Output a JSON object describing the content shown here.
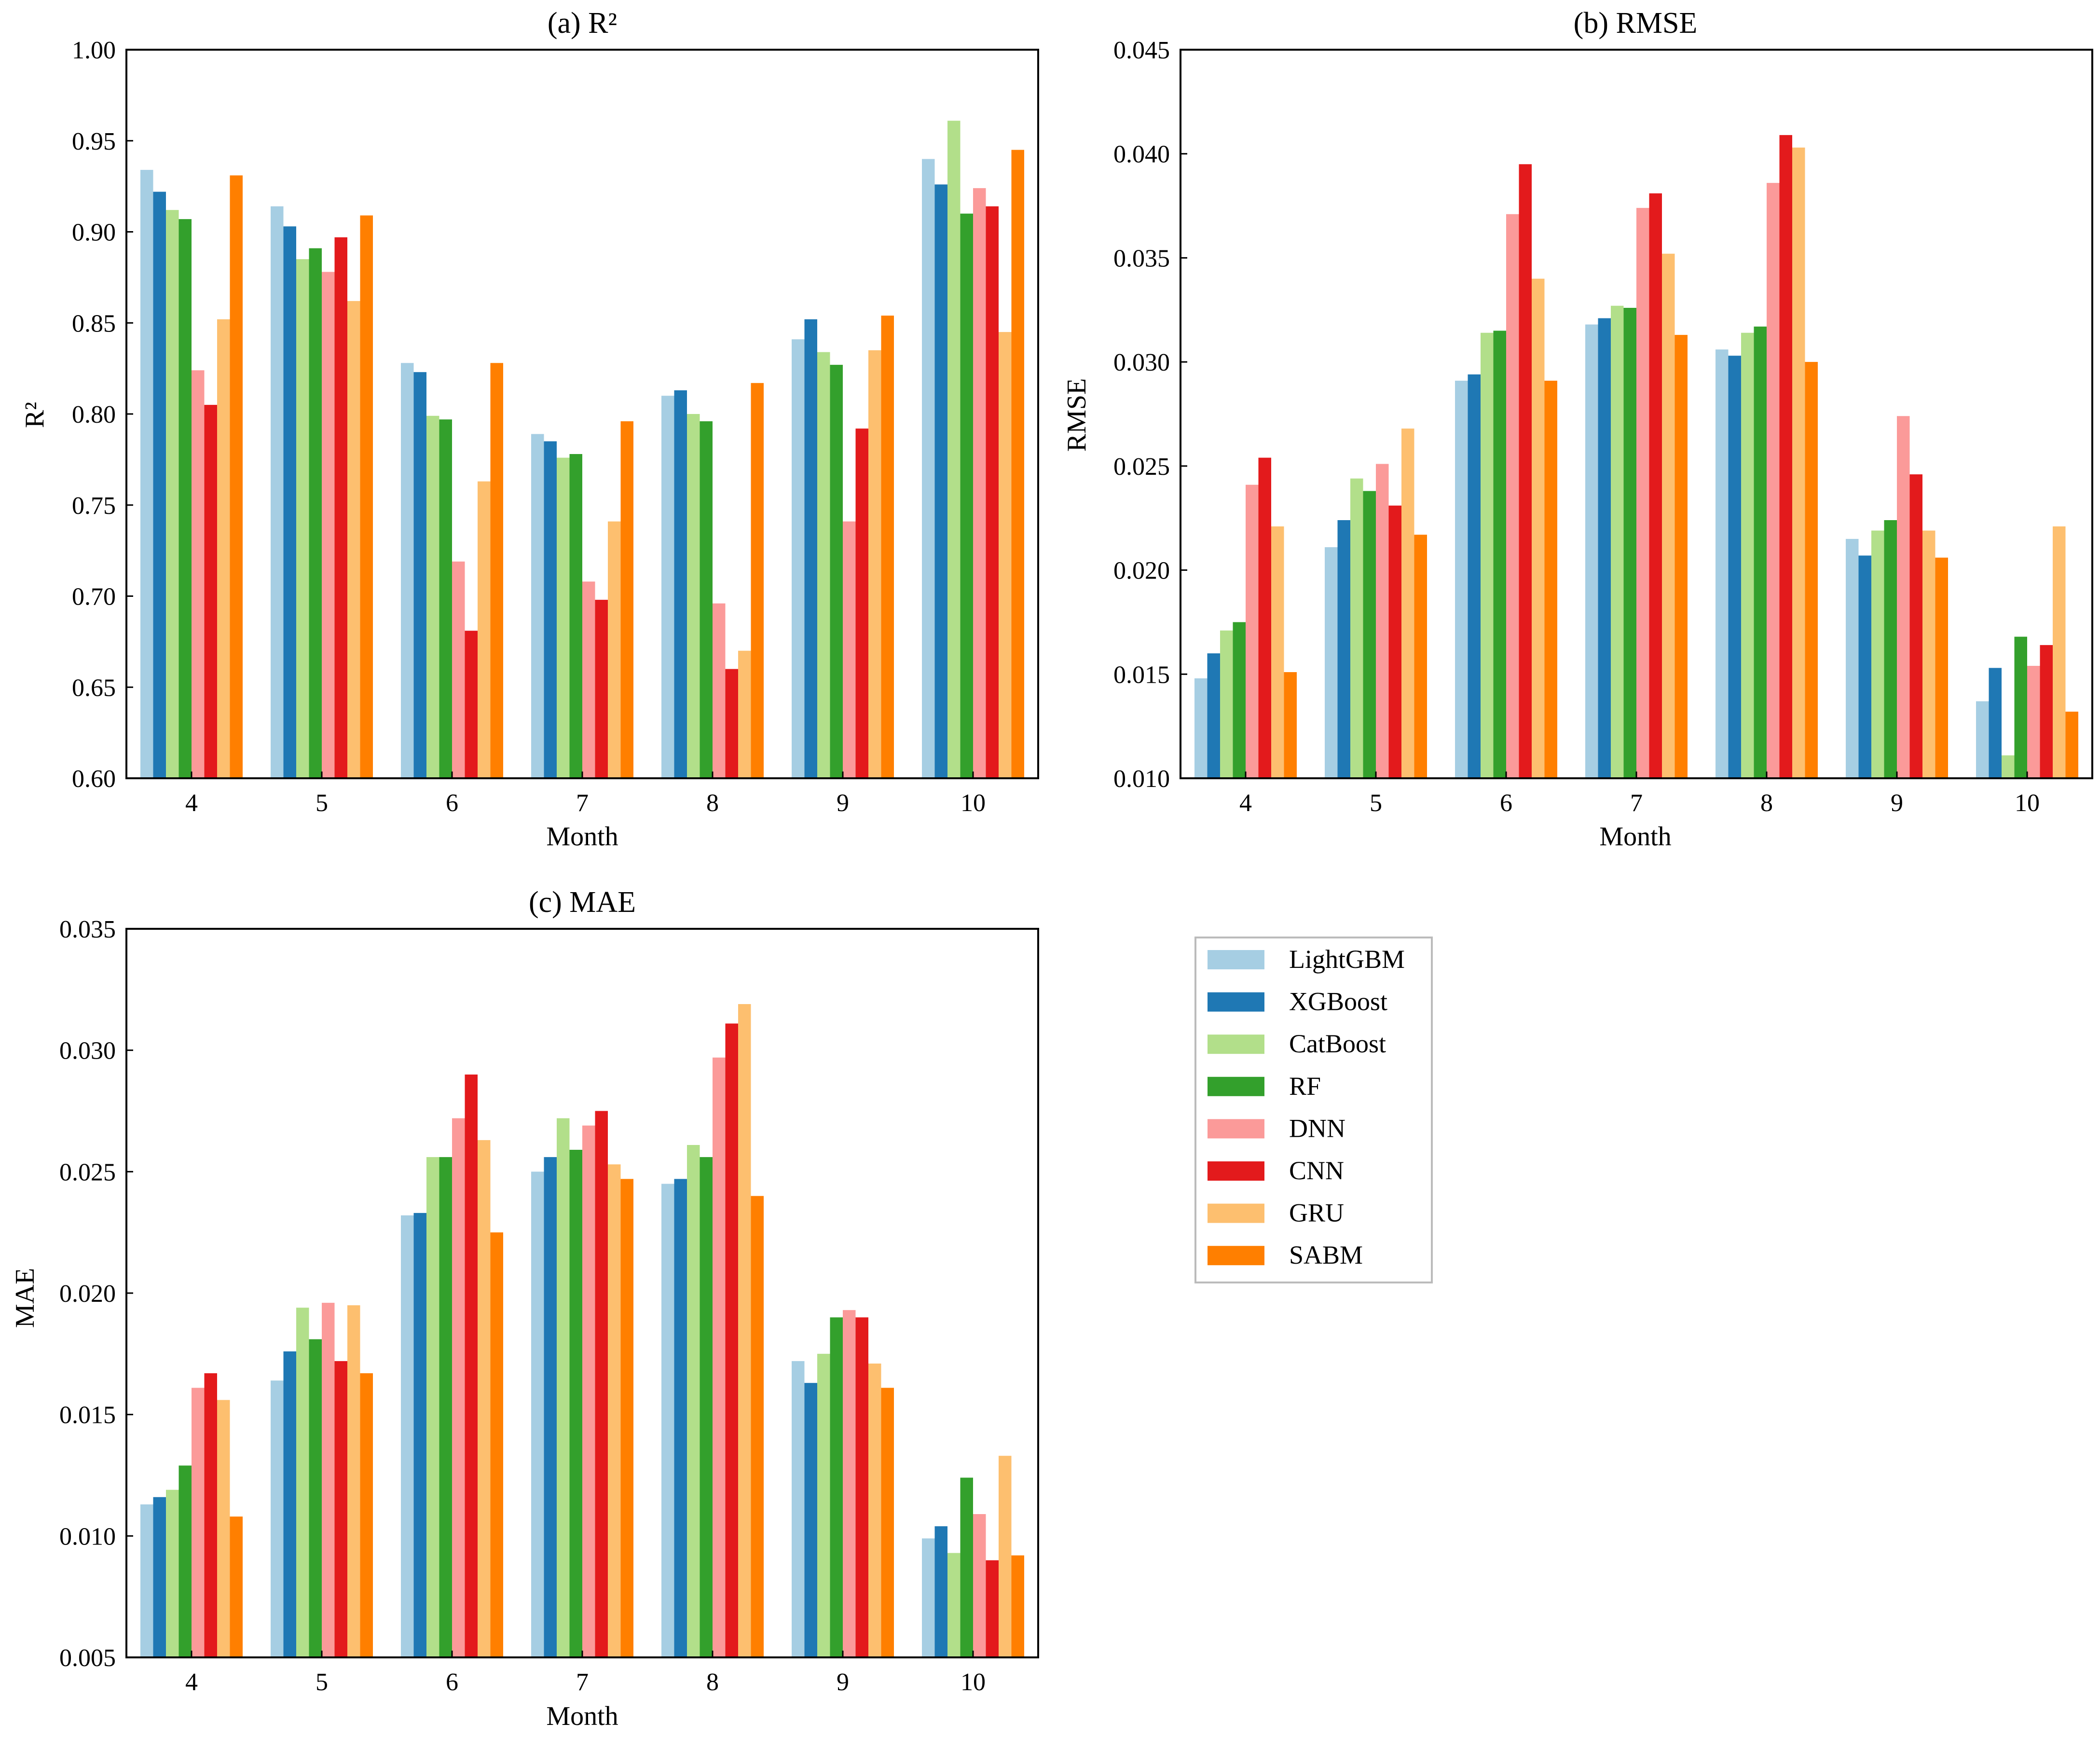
{
  "colors": {
    "LightGBM": "#a6cee3",
    "XGBoost": "#1f78b4",
    "CatBoost": "#b2df8a",
    "RF": "#33a02c",
    "DNN": "#fb9a99",
    "CNN": "#e31a1c",
    "GRU": "#fdbf6f",
    "SABM": "#ff7f00"
  },
  "legend": {
    "entries": [
      "LightGBM",
      "XGBoost",
      "CatBoost",
      "RF",
      "DNN",
      "CNN",
      "GRU",
      "SABM"
    ]
  },
  "chart_data": [
    {
      "type": "bar",
      "title": "(a) R²",
      "xlabel": "Month",
      "ylabel": "R²",
      "categories": [
        "4",
        "5",
        "6",
        "7",
        "8",
        "9",
        "10"
      ],
      "ylim": [
        0.6,
        1.0
      ],
      "yticks": [
        "0.60",
        "0.65",
        "0.70",
        "0.75",
        "0.80",
        "0.85",
        "0.90",
        "0.95",
        "1.00"
      ],
      "series": [
        {
          "name": "LightGBM",
          "values": [
            0.934,
            0.914,
            0.828,
            0.789,
            0.81,
            0.841,
            0.94
          ]
        },
        {
          "name": "XGBoost",
          "values": [
            0.922,
            0.903,
            0.823,
            0.785,
            0.813,
            0.852,
            0.926
          ]
        },
        {
          "name": "CatBoost",
          "values": [
            0.912,
            0.885,
            0.799,
            0.776,
            0.8,
            0.834,
            0.961
          ]
        },
        {
          "name": "RF",
          "values": [
            0.907,
            0.891,
            0.797,
            0.778,
            0.796,
            0.827,
            0.91
          ]
        },
        {
          "name": "DNN",
          "values": [
            0.824,
            0.878,
            0.719,
            0.708,
            0.696,
            0.741,
            0.924
          ]
        },
        {
          "name": "CNN",
          "values": [
            0.805,
            0.897,
            0.681,
            0.698,
            0.66,
            0.792,
            0.914
          ]
        },
        {
          "name": "GRU",
          "values": [
            0.852,
            0.862,
            0.763,
            0.741,
            0.67,
            0.835,
            0.845
          ]
        },
        {
          "name": "SABM",
          "values": [
            0.931,
            0.909,
            0.828,
            0.796,
            0.817,
            0.854,
            0.945
          ]
        }
      ]
    },
    {
      "type": "bar",
      "title": "(b) RMSE",
      "xlabel": "Month",
      "ylabel": "RMSE",
      "categories": [
        "4",
        "5",
        "6",
        "7",
        "8",
        "9",
        "10"
      ],
      "ylim": [
        0.01,
        0.045
      ],
      "yticks": [
        "0.010",
        "0.015",
        "0.020",
        "0.025",
        "0.030",
        "0.035",
        "0.040",
        "0.045"
      ],
      "series": [
        {
          "name": "LightGBM",
          "values": [
            0.0148,
            0.0211,
            0.0291,
            0.0318,
            0.0306,
            0.0215,
            0.0137
          ]
        },
        {
          "name": "XGBoost",
          "values": [
            0.016,
            0.0224,
            0.0294,
            0.0321,
            0.0303,
            0.0207,
            0.0153
          ]
        },
        {
          "name": "CatBoost",
          "values": [
            0.0171,
            0.0244,
            0.0314,
            0.0327,
            0.0314,
            0.0219,
            0.0111
          ]
        },
        {
          "name": "RF",
          "values": [
            0.0175,
            0.0238,
            0.0315,
            0.0326,
            0.0317,
            0.0224,
            0.0168
          ]
        },
        {
          "name": "DNN",
          "values": [
            0.0241,
            0.0251,
            0.0371,
            0.0374,
            0.0386,
            0.0274,
            0.0154
          ]
        },
        {
          "name": "CNN",
          "values": [
            0.0254,
            0.0231,
            0.0395,
            0.0381,
            0.0409,
            0.0246,
            0.0164
          ]
        },
        {
          "name": "GRU",
          "values": [
            0.0221,
            0.0268,
            0.034,
            0.0352,
            0.0403,
            0.0219,
            0.0221
          ]
        },
        {
          "name": "SABM",
          "values": [
            0.0151,
            0.0217,
            0.0291,
            0.0313,
            0.03,
            0.0206,
            0.0132
          ]
        }
      ]
    },
    {
      "type": "bar",
      "title": "(c) MAE",
      "xlabel": "Month",
      "ylabel": "MAE",
      "categories": [
        "4",
        "5",
        "6",
        "7",
        "8",
        "9",
        "10"
      ],
      "ylim": [
        0.005,
        0.035
      ],
      "yticks": [
        "0.005",
        "0.010",
        "0.015",
        "0.020",
        "0.025",
        "0.030",
        "0.035"
      ],
      "series": [
        {
          "name": "LightGBM",
          "values": [
            0.0113,
            0.0164,
            0.0232,
            0.025,
            0.0245,
            0.0172,
            0.0099
          ]
        },
        {
          "name": "XGBoost",
          "values": [
            0.0116,
            0.0176,
            0.0233,
            0.0256,
            0.0247,
            0.0163,
            0.0104
          ]
        },
        {
          "name": "CatBoost",
          "values": [
            0.0119,
            0.0194,
            0.0256,
            0.0272,
            0.0261,
            0.0175,
            0.0093
          ]
        },
        {
          "name": "RF",
          "values": [
            0.0129,
            0.0181,
            0.0256,
            0.0259,
            0.0256,
            0.019,
            0.0124
          ]
        },
        {
          "name": "DNN",
          "values": [
            0.0161,
            0.0196,
            0.0272,
            0.0269,
            0.0297,
            0.0193,
            0.0109
          ]
        },
        {
          "name": "CNN",
          "values": [
            0.0167,
            0.0172,
            0.029,
            0.0275,
            0.0311,
            0.019,
            0.009
          ]
        },
        {
          "name": "GRU",
          "values": [
            0.0156,
            0.0195,
            0.0263,
            0.0253,
            0.0319,
            0.0171,
            0.0133
          ]
        },
        {
          "name": "SABM",
          "values": [
            0.0108,
            0.0167,
            0.0225,
            0.0247,
            0.024,
            0.0161,
            0.0092
          ]
        }
      ]
    }
  ]
}
